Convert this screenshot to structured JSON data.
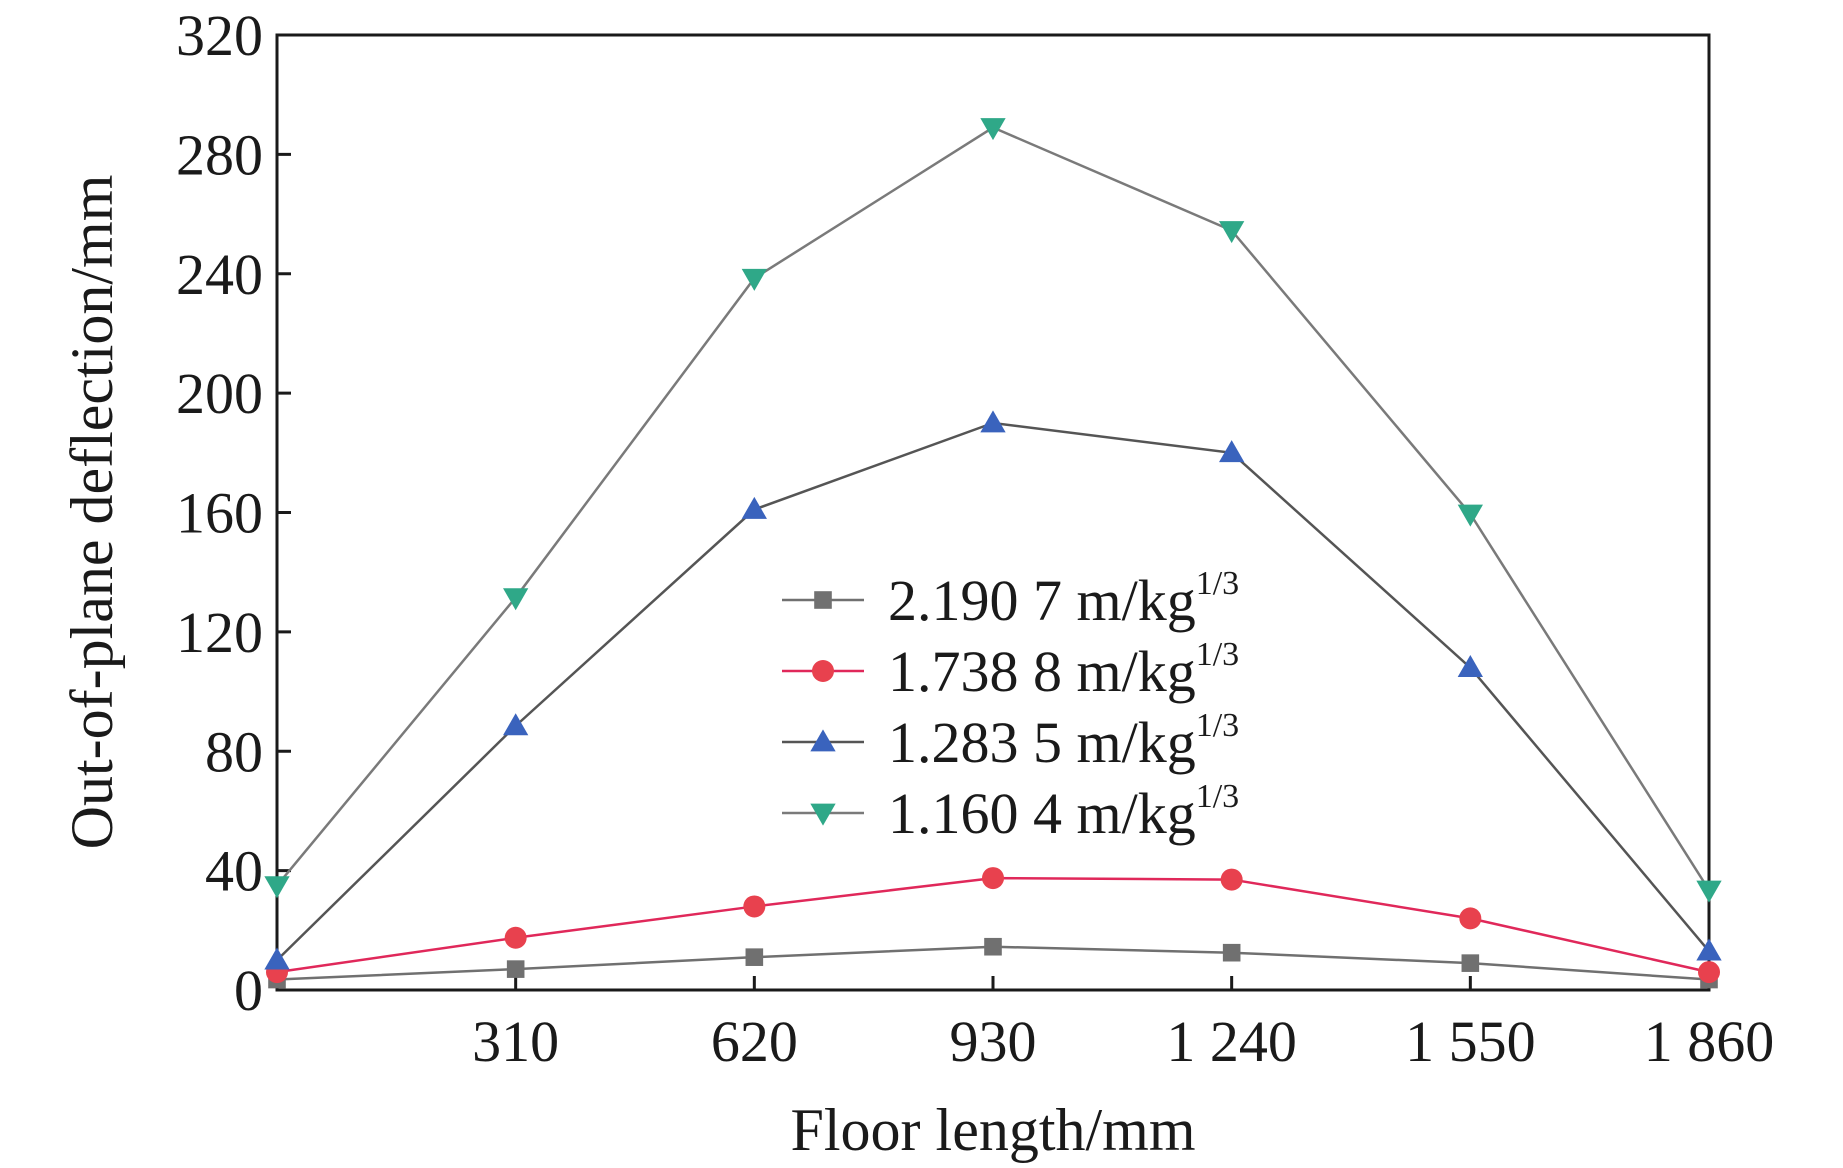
{
  "chart_data": {
    "type": "line",
    "title": "",
    "xlabel": "Floor length/mm",
    "ylabel": "Out-of-plane deflection/mm",
    "x": [
      0,
      310,
      620,
      930,
      1240,
      1550,
      1860
    ],
    "xlim": [
      0,
      1860
    ],
    "ylim": [
      0,
      320
    ],
    "x_ticks": [
      {
        "value": 310,
        "label": "310"
      },
      {
        "value": 620,
        "label": "620"
      },
      {
        "value": 930,
        "label": "930"
      },
      {
        "value": 1240,
        "label": "1 240"
      },
      {
        "value": 1550,
        "label": "1 550"
      },
      {
        "value": 1860,
        "label": "1 860"
      }
    ],
    "y_ticks": [
      {
        "value": 0,
        "label": "0"
      },
      {
        "value": 40,
        "label": "40"
      },
      {
        "value": 80,
        "label": "80"
      },
      {
        "value": 120,
        "label": "120"
      },
      {
        "value": 160,
        "label": "160"
      },
      {
        "value": 200,
        "label": "200"
      },
      {
        "value": 240,
        "label": "240"
      },
      {
        "value": 280,
        "label": "280"
      },
      {
        "value": 320,
        "label": "320"
      }
    ],
    "grid": false,
    "legend_position": "center",
    "series": [
      {
        "name": "2.190 7 m/kg",
        "name_sup": "1/3",
        "marker": "square",
        "marker_color": "#707070",
        "line_color": "#707070",
        "values": [
          3.5,
          7,
          11,
          14.5,
          12.5,
          9,
          3.5
        ]
      },
      {
        "name": "1.738 8 m/kg",
        "name_sup": "1/3",
        "marker": "circle",
        "marker_color": "#e8414e",
        "line_color": "#e0285a",
        "values": [
          6,
          17.5,
          28,
          37.5,
          37,
          24,
          6
        ]
      },
      {
        "name": "1.283 5 m/kg",
        "name_sup": "1/3",
        "marker": "triangle-up",
        "marker_color": "#3a63bd",
        "line_color": "#555555",
        "values": [
          10,
          88.5,
          161,
          190,
          180,
          108,
          13
        ]
      },
      {
        "name": "1.160 4 m/kg",
        "name_sup": "1/3",
        "marker": "triangle-down",
        "marker_color": "#2fa888",
        "line_color": "#7a7a7a",
        "values": [
          35,
          131.5,
          238.5,
          289,
          254.5,
          159.5,
          33.5
        ]
      }
    ]
  }
}
